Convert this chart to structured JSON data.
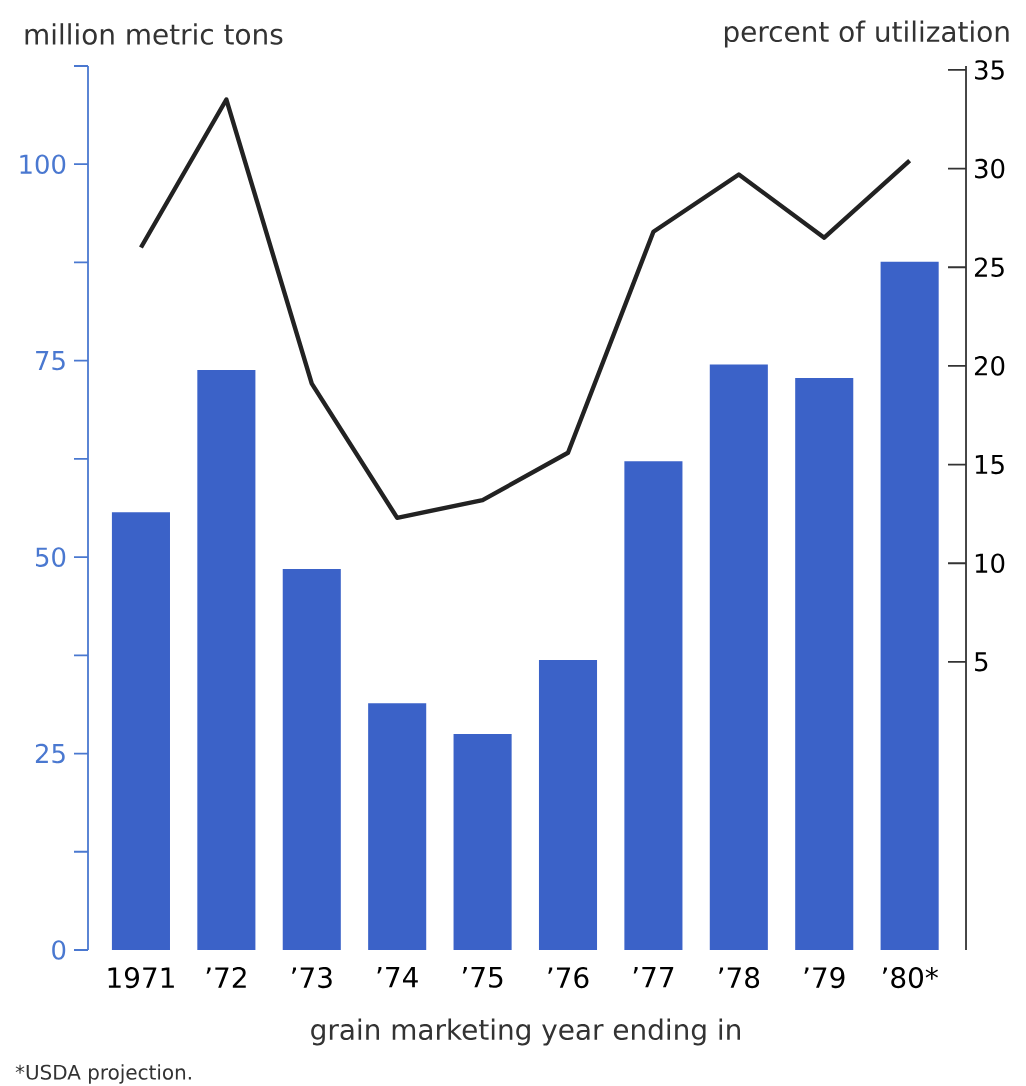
{
  "chart_data": {
    "type": "bar",
    "ylabel": "million metric tons",
    "y2label": "percent of utilization",
    "xlabel": "grain marketing year ending in",
    "annotations": [
      "*USDA projection."
    ],
    "categories": [
      "1971",
      "’72",
      "’73",
      "’74",
      "’75",
      "’76",
      "’77",
      "’78",
      "’79",
      "’80*"
    ],
    "series": [
      {
        "color": "#3b62c8",
        "values": [
          55.7,
          73.8,
          48.5,
          31.4,
          27.5,
          36.9,
          62.2,
          74.5,
          72.8,
          87.6
        ]
      },
      {
        "type": "line",
        "axis": "y2",
        "color": "#222222",
        "values": [
          26.0,
          33.5,
          19.1,
          12.3,
          13.2,
          15.6,
          26.8,
          29.7,
          26.5,
          30.4
        ]
      }
    ],
    "ylim": [
      0,
      112.5
    ],
    "yticks": [
      0,
      {
        "value": 12.5,
        "label": null
      },
      25,
      {
        "value": 37.5,
        "label": null
      },
      50,
      {
        "value": 62.5,
        "label": null
      },
      75,
      {
        "value": 87.5,
        "label": null
      },
      100,
      {
        "value": 112.5,
        "label": null
      }
    ],
    "y2lim": [
      -9.6,
      35.2
    ],
    "y2ticks": [
      5,
      10,
      15,
      20,
      25,
      30,
      35
    ],
    "grid": false,
    "marker": "none",
    "line_style": "solid"
  }
}
